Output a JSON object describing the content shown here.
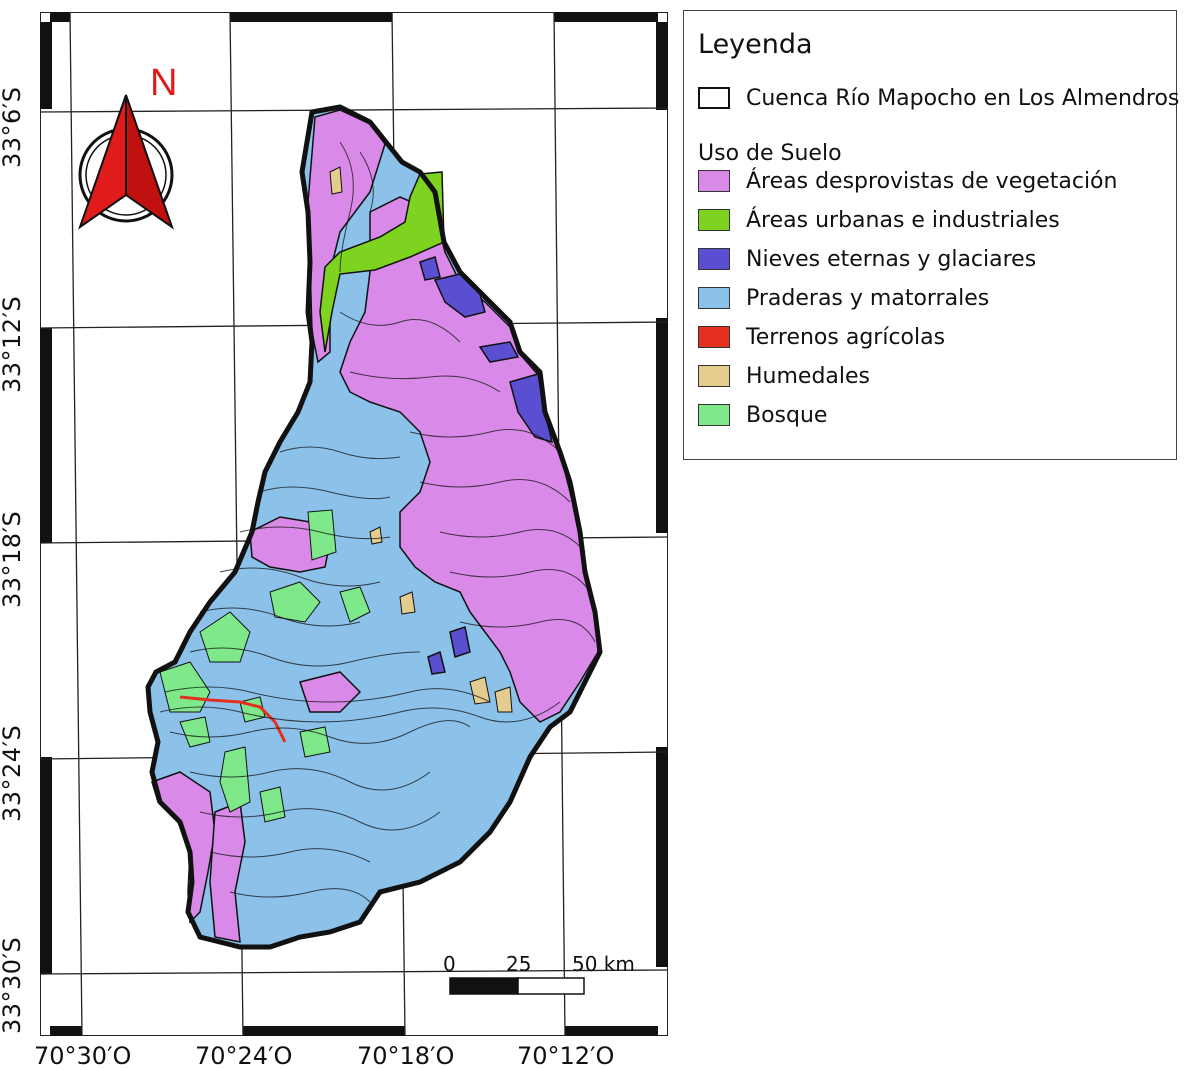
{
  "map": {
    "north_arrow": {
      "letter": "N",
      "icon": "north-arrow-icon"
    },
    "lat_labels": [
      "33°6′S",
      "33°12′S",
      "33°18′S",
      "33°24′S",
      "33°30′S"
    ],
    "lon_labels": [
      "70°30′O",
      "70°24′O",
      "70°18′O",
      "70°12′O"
    ],
    "scale_bar": {
      "labels": [
        "0",
        "25",
        "50 km"
      ]
    }
  },
  "legend": {
    "title": "Leyenda",
    "boundary": {
      "label": "Cuenca Río Mapocho en Los Almendros",
      "color": "#ffffff"
    },
    "subtitle": "Uso de Suelo",
    "classes": [
      {
        "label": "Áreas desprovistas de vegetación",
        "color": "#d98ae8"
      },
      {
        "label": "Áreas urbanas e industriales",
        "color": "#7ed321"
      },
      {
        "label": "Nieves eternas y glaciares",
        "color": "#5a4fd0"
      },
      {
        "label": "Praderas y matorrales",
        "color": "#8cc2ea"
      },
      {
        "label": "Terrenos agrícolas",
        "color": "#e3301f"
      },
      {
        "label": "Humedales",
        "color": "#e3cc8e"
      },
      {
        "label": "Bosque",
        "color": "#7ee88a"
      }
    ]
  }
}
